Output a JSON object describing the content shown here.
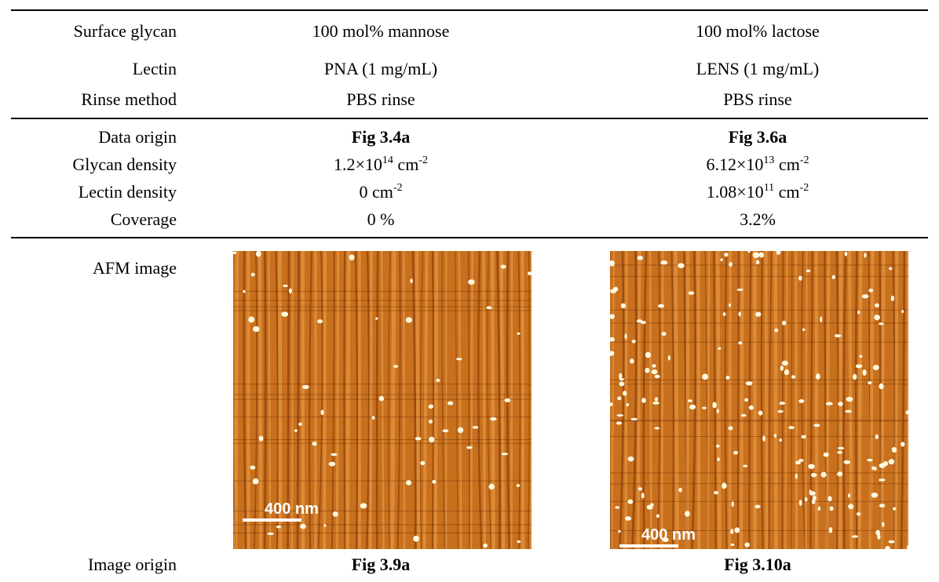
{
  "rows": [
    {
      "label": "Surface glycan",
      "cells": [
        [
          {
            "text": "100 mol% mannose"
          }
        ],
        [
          {
            "text": "100 mol% lactose"
          }
        ]
      ]
    },
    {
      "label": "Lectin",
      "cells": [
        [
          {
            "text": "PNA (1 mg/mL)"
          }
        ],
        [
          {
            "text": "LENS (1 mg/mL)"
          }
        ]
      ]
    },
    {
      "label": "Rinse method",
      "cells": [
        [
          {
            "text": "PBS rinse"
          }
        ],
        [
          {
            "text": "PBS rinse"
          }
        ]
      ]
    },
    {
      "label": "Data origin",
      "bold": true,
      "cells": [
        [
          {
            "text": "Fig 3.4a"
          }
        ],
        [
          {
            "text": "Fig 3.6a"
          }
        ]
      ]
    },
    {
      "label": "Glycan density",
      "cells": [
        [
          {
            "text": "1.2×10"
          },
          {
            "sup": "14"
          },
          {
            "text": " cm"
          },
          {
            "sup": "-2"
          }
        ],
        [
          {
            "text": "6.12×10"
          },
          {
            "sup": "13"
          },
          {
            "text": " cm"
          },
          {
            "sup": "-2"
          }
        ]
      ]
    },
    {
      "label": "Lectin density",
      "cells": [
        [
          {
            "text": "0 cm"
          },
          {
            "sup": "-2"
          }
        ],
        [
          {
            "text": "1.08×10"
          },
          {
            "sup": "11"
          },
          {
            "text": " cm"
          },
          {
            "sup": "-2"
          }
        ]
      ]
    },
    {
      "label": "Coverage",
      "cells": [
        [
          {
            "text": "0 %"
          }
        ],
        [
          {
            "text": "3.2%"
          }
        ]
      ]
    }
  ],
  "afm": {
    "label": "AFM image",
    "images": [
      {
        "scale_bar": "400 nm"
      },
      {
        "scale_bar": "400 nm"
      }
    ]
  },
  "image_origin": {
    "label": "Image origin",
    "cells": [
      "Fig 3.9a",
      "Fig 3.10a"
    ]
  }
}
